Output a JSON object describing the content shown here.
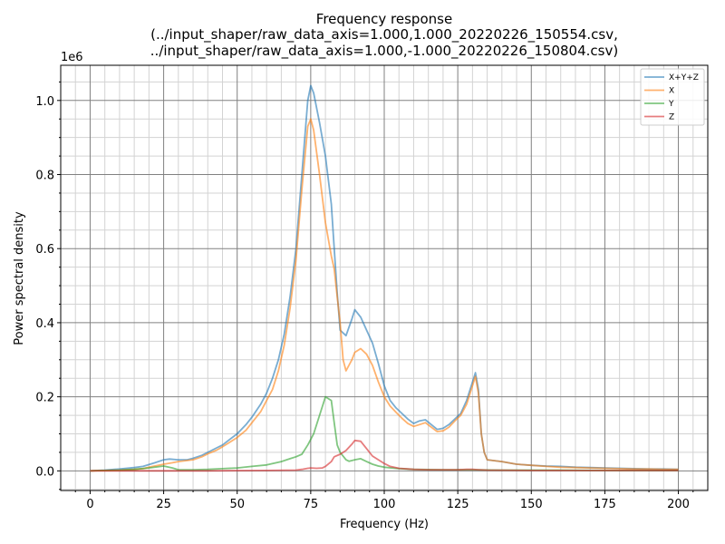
{
  "chart_data": {
    "type": "line",
    "title_lines": [
      "Frequency response",
      "(../input_shaper/raw_data_axis=1.000,1.000_20220226_150554.csv,",
      "../input_shaper/raw_data_axis=1.000,-1.000_20220226_150804.csv)"
    ],
    "xlabel": "Frequency (Hz)",
    "ylabel": "Power spectral density",
    "y_offset_label": "1e6",
    "xlim": [
      -10,
      210
    ],
    "ylim": [
      -0.053,
      1.095
    ],
    "x_ticks": [
      0,
      25,
      50,
      75,
      100,
      125,
      150,
      175,
      200
    ],
    "y_ticks": [
      0.0,
      0.2,
      0.4,
      0.6,
      0.8,
      1.0
    ],
    "y_tick_labels": [
      "0.0",
      "0.2",
      "0.4",
      "0.6",
      "0.8",
      "1.0"
    ],
    "grid": "major and minor",
    "legend_position": "top-right",
    "series": [
      {
        "name": "X+Y+Z",
        "color": "#1f77b4",
        "points": [
          [
            0,
            0
          ],
          [
            5,
            0.002
          ],
          [
            10,
            0.005
          ],
          [
            15,
            0.009
          ],
          [
            18,
            0.012
          ],
          [
            22,
            0.022
          ],
          [
            25,
            0.03
          ],
          [
            27,
            0.032
          ],
          [
            30,
            0.03
          ],
          [
            33,
            0.03
          ],
          [
            35,
            0.034
          ],
          [
            38,
            0.042
          ],
          [
            40,
            0.05
          ],
          [
            43,
            0.062
          ],
          [
            45,
            0.07
          ],
          [
            47,
            0.082
          ],
          [
            50,
            0.1
          ],
          [
            53,
            0.125
          ],
          [
            55,
            0.145
          ],
          [
            58,
            0.18
          ],
          [
            60,
            0.21
          ],
          [
            62,
            0.25
          ],
          [
            64,
            0.3
          ],
          [
            66,
            0.37
          ],
          [
            68,
            0.47
          ],
          [
            70,
            0.6
          ],
          [
            72,
            0.8
          ],
          [
            74,
            1.0
          ],
          [
            75,
            1.04
          ],
          [
            76,
            1.02
          ],
          [
            78,
            0.94
          ],
          [
            80,
            0.85
          ],
          [
            82,
            0.72
          ],
          [
            83,
            0.6
          ],
          [
            84,
            0.48
          ],
          [
            85,
            0.38
          ],
          [
            87,
            0.365
          ],
          [
            89,
            0.41
          ],
          [
            90,
            0.435
          ],
          [
            92,
            0.415
          ],
          [
            94,
            0.38
          ],
          [
            96,
            0.345
          ],
          [
            98,
            0.29
          ],
          [
            100,
            0.23
          ],
          [
            102,
            0.19
          ],
          [
            104,
            0.17
          ],
          [
            106,
            0.155
          ],
          [
            108,
            0.14
          ],
          [
            110,
            0.128
          ],
          [
            112,
            0.135
          ],
          [
            114,
            0.138
          ],
          [
            116,
            0.125
          ],
          [
            118,
            0.112
          ],
          [
            120,
            0.115
          ],
          [
            122,
            0.125
          ],
          [
            124,
            0.14
          ],
          [
            126,
            0.155
          ],
          [
            128,
            0.19
          ],
          [
            130,
            0.24
          ],
          [
            131,
            0.265
          ],
          [
            132,
            0.22
          ],
          [
            133,
            0.1
          ],
          [
            134,
            0.05
          ],
          [
            135,
            0.03
          ],
          [
            140,
            0.025
          ],
          [
            145,
            0.018
          ],
          [
            150,
            0.015
          ],
          [
            155,
            0.013
          ],
          [
            160,
            0.012
          ],
          [
            165,
            0.01
          ],
          [
            170,
            0.009
          ],
          [
            175,
            0.008
          ],
          [
            180,
            0.007
          ],
          [
            185,
            0.006
          ],
          [
            190,
            0.005
          ],
          [
            195,
            0.005
          ],
          [
            200,
            0.004
          ]
        ]
      },
      {
        "name": "X",
        "color": "#ff7f0e",
        "points": [
          [
            0,
            0
          ],
          [
            5,
            0.001
          ],
          [
            10,
            0.002
          ],
          [
            15,
            0.004
          ],
          [
            18,
            0.006
          ],
          [
            20,
            0.01
          ],
          [
            25,
            0.018
          ],
          [
            28,
            0.022
          ],
          [
            30,
            0.025
          ],
          [
            33,
            0.028
          ],
          [
            35,
            0.03
          ],
          [
            38,
            0.038
          ],
          [
            40,
            0.046
          ],
          [
            43,
            0.056
          ],
          [
            45,
            0.065
          ],
          [
            47,
            0.075
          ],
          [
            50,
            0.09
          ],
          [
            53,
            0.11
          ],
          [
            55,
            0.13
          ],
          [
            58,
            0.16
          ],
          [
            60,
            0.19
          ],
          [
            62,
            0.22
          ],
          [
            64,
            0.27
          ],
          [
            66,
            0.34
          ],
          [
            68,
            0.44
          ],
          [
            70,
            0.57
          ],
          [
            72,
            0.76
          ],
          [
            74,
            0.93
          ],
          [
            75,
            0.95
          ],
          [
            76,
            0.92
          ],
          [
            78,
            0.8
          ],
          [
            80,
            0.67
          ],
          [
            82,
            0.58
          ],
          [
            83,
            0.545
          ],
          [
            84,
            0.47
          ],
          [
            85,
            0.4
          ],
          [
            86,
            0.3
          ],
          [
            87,
            0.27
          ],
          [
            89,
            0.3
          ],
          [
            90,
            0.32
          ],
          [
            92,
            0.33
          ],
          [
            94,
            0.315
          ],
          [
            96,
            0.285
          ],
          [
            98,
            0.24
          ],
          [
            100,
            0.2
          ],
          [
            102,
            0.175
          ],
          [
            104,
            0.158
          ],
          [
            106,
            0.142
          ],
          [
            108,
            0.128
          ],
          [
            110,
            0.12
          ],
          [
            112,
            0.125
          ],
          [
            114,
            0.13
          ],
          [
            116,
            0.118
          ],
          [
            118,
            0.106
          ],
          [
            120,
            0.108
          ],
          [
            122,
            0.118
          ],
          [
            124,
            0.135
          ],
          [
            126,
            0.15
          ],
          [
            128,
            0.18
          ],
          [
            130,
            0.23
          ],
          [
            131,
            0.255
          ],
          [
            132,
            0.21
          ],
          [
            133,
            0.1
          ],
          [
            134,
            0.05
          ],
          [
            135,
            0.03
          ],
          [
            140,
            0.025
          ],
          [
            145,
            0.018
          ],
          [
            150,
            0.015
          ],
          [
            155,
            0.012
          ],
          [
            160,
            0.01
          ],
          [
            165,
            0.009
          ],
          [
            170,
            0.008
          ],
          [
            175,
            0.007
          ],
          [
            180,
            0.006
          ],
          [
            185,
            0.005
          ],
          [
            190,
            0.005
          ],
          [
            195,
            0.004
          ],
          [
            200,
            0.004
          ]
        ]
      },
      {
        "name": "Y",
        "color": "#2ca02c",
        "points": [
          [
            0,
            0
          ],
          [
            5,
            0.001
          ],
          [
            10,
            0.002
          ],
          [
            15,
            0.004
          ],
          [
            20,
            0.008
          ],
          [
            25,
            0.013
          ],
          [
            28,
            0.008
          ],
          [
            30,
            0.003
          ],
          [
            35,
            0.003
          ],
          [
            40,
            0.004
          ],
          [
            45,
            0.006
          ],
          [
            50,
            0.008
          ],
          [
            55,
            0.012
          ],
          [
            60,
            0.016
          ],
          [
            65,
            0.025
          ],
          [
            68,
            0.033
          ],
          [
            70,
            0.038
          ],
          [
            72,
            0.045
          ],
          [
            74,
            0.07
          ],
          [
            76,
            0.1
          ],
          [
            78,
            0.15
          ],
          [
            80,
            0.2
          ],
          [
            82,
            0.19
          ],
          [
            83,
            0.13
          ],
          [
            84,
            0.07
          ],
          [
            85,
            0.05
          ],
          [
            87,
            0.03
          ],
          [
            88,
            0.026
          ],
          [
            90,
            0.03
          ],
          [
            92,
            0.033
          ],
          [
            94,
            0.025
          ],
          [
            96,
            0.018
          ],
          [
            98,
            0.013
          ],
          [
            100,
            0.01
          ],
          [
            105,
            0.006
          ],
          [
            110,
            0.004
          ],
          [
            120,
            0.003
          ],
          [
            130,
            0.003
          ],
          [
            140,
            0.002
          ],
          [
            150,
            0.002
          ],
          [
            160,
            0.002
          ],
          [
            180,
            0.001
          ],
          [
            200,
            0.001
          ]
        ]
      },
      {
        "name": "Z",
        "color": "#d62728",
        "points": [
          [
            0,
            0
          ],
          [
            20,
            0
          ],
          [
            40,
            0
          ],
          [
            60,
            0.001
          ],
          [
            70,
            0.002
          ],
          [
            72,
            0.004
          ],
          [
            74,
            0.007
          ],
          [
            75,
            0.008
          ],
          [
            77,
            0.007
          ],
          [
            79,
            0.008
          ],
          [
            80,
            0.012
          ],
          [
            82,
            0.025
          ],
          [
            83,
            0.038
          ],
          [
            85,
            0.045
          ],
          [
            87,
            0.055
          ],
          [
            89,
            0.072
          ],
          [
            90,
            0.082
          ],
          [
            92,
            0.08
          ],
          [
            94,
            0.06
          ],
          [
            96,
            0.04
          ],
          [
            98,
            0.03
          ],
          [
            100,
            0.02
          ],
          [
            102,
            0.012
          ],
          [
            105,
            0.007
          ],
          [
            110,
            0.004
          ],
          [
            115,
            0.003
          ],
          [
            120,
            0.003
          ],
          [
            125,
            0.003
          ],
          [
            128,
            0.004
          ],
          [
            130,
            0.004
          ],
          [
            132,
            0.003
          ],
          [
            135,
            0.002
          ],
          [
            150,
            0.001
          ],
          [
            170,
            0.001
          ],
          [
            200,
            0.001
          ]
        ]
      }
    ]
  }
}
